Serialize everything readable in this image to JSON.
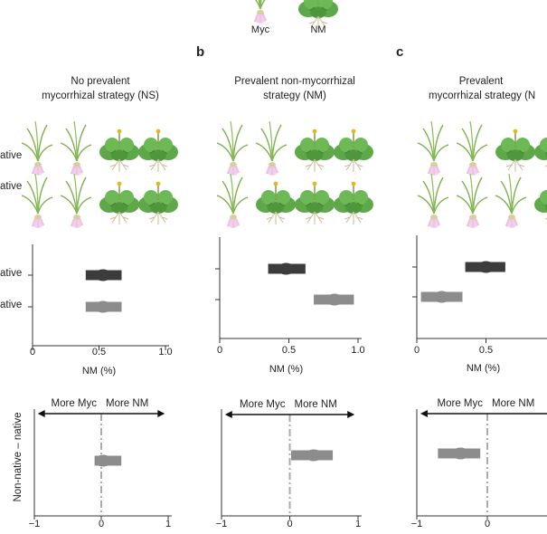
{
  "legend": {
    "myc": "Myc",
    "nm": "NM"
  },
  "panels": [
    {
      "letter": "",
      "title_line1": "No prevalent",
      "title_line2": "mycorrhizal strategy (NS)",
      "row_labels": [
        "ative",
        "ative"
      ],
      "plant_rows": [
        [
          "myc",
          "myc",
          "nm",
          "nm"
        ],
        [
          "myc",
          "myc",
          "nm",
          "nm"
        ]
      ]
    },
    {
      "letter": "b",
      "title_line1": "Prevalent non-mycorrhizal",
      "title_line2": "strategy (NM)",
      "plant_rows": [
        [
          "myc",
          "myc",
          "nm",
          "nm"
        ],
        [
          "myc",
          "nm",
          "nm",
          "nm"
        ]
      ]
    },
    {
      "letter": "c",
      "title_line1": "Prevalent",
      "title_line2": "mycorrhizal strategy (N",
      "plant_rows": [
        [
          "myc",
          "myc",
          "nm",
          "nm"
        ],
        [
          "myc",
          "myc",
          "myc",
          "nm"
        ]
      ]
    }
  ],
  "top_plots": {
    "xlabel": "NM (%)",
    "row_labels": [
      "ative",
      "ative"
    ],
    "colors": {
      "dark": "#3c3c3c",
      "light": "#8c8c8c"
    },
    "panels": [
      {
        "ticks": [
          "0",
          "0.5",
          "1.0"
        ],
        "dark": [
          0.4,
          0.53,
          0.67
        ],
        "light": [
          0.4,
          0.53,
          0.67
        ]
      },
      {
        "ticks": [
          "0",
          "0.5",
          "1.0"
        ],
        "dark": [
          0.35,
          0.48,
          0.62
        ],
        "light": [
          0.68,
          0.83,
          0.97
        ]
      },
      {
        "ticks": [
          "0",
          "0.5"
        ],
        "dark": [
          0.35,
          0.5,
          0.64
        ],
        "light": [
          0.03,
          0.18,
          0.33
        ]
      }
    ]
  },
  "bottom_plots": {
    "ylabel": "Non-native – native",
    "more_myc": "More Myc",
    "more_nm": "More NM",
    "panels": [
      {
        "ticks": [
          "−1",
          "0",
          "1"
        ],
        "value": [
          -0.1,
          0.03,
          0.3
        ]
      },
      {
        "ticks": [
          "−1",
          "0",
          "1"
        ],
        "value": [
          0.02,
          0.35,
          0.63
        ]
      },
      {
        "ticks": [
          "−1",
          "0"
        ],
        "value": [
          -0.7,
          -0.38,
          -0.1
        ]
      }
    ]
  }
}
